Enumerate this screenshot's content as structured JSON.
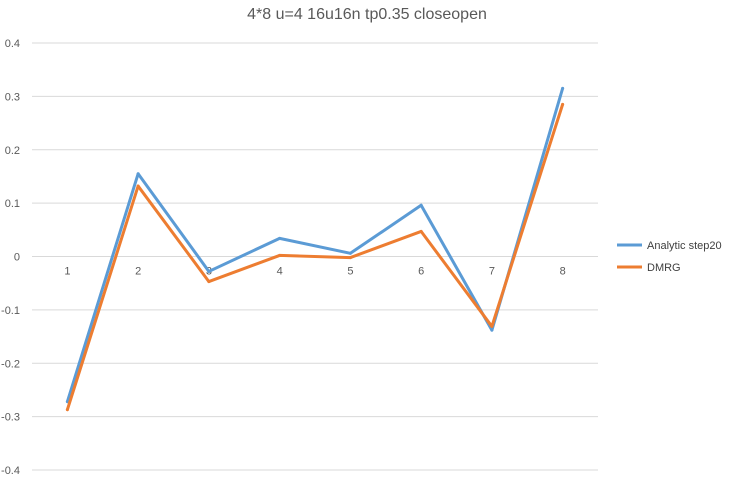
{
  "chart_data": {
    "type": "line",
    "title": "4*8 u=4 16u16n tp0.35 closeopen",
    "xlabel": "",
    "ylabel": "",
    "categories": [
      "1",
      "2",
      "3",
      "4",
      "5",
      "6",
      "7",
      "8"
    ],
    "ylim": [
      -0.4,
      0.4
    ],
    "yticks": [
      "0.4",
      "0.3",
      "0.2",
      "0.1",
      "0",
      "-0.1",
      "-0.2",
      "-0.3",
      "-0.4"
    ],
    "ytick_values": [
      0.4,
      0.3,
      0.2,
      0.1,
      0,
      -0.1,
      -0.2,
      -0.3,
      -0.4
    ],
    "grid": true,
    "legend_position": "right",
    "series": [
      {
        "name": "Analytic step20",
        "color": "#5B9BD5",
        "values": [
          -0.272,
          0.155,
          -0.028,
          0.034,
          0.006,
          0.096,
          -0.138,
          0.315
        ]
      },
      {
        "name": "DMRG",
        "color": "#ED7D31",
        "values": [
          -0.287,
          0.132,
          -0.047,
          0.002,
          -0.002,
          0.047,
          -0.131,
          0.285
        ]
      }
    ]
  }
}
